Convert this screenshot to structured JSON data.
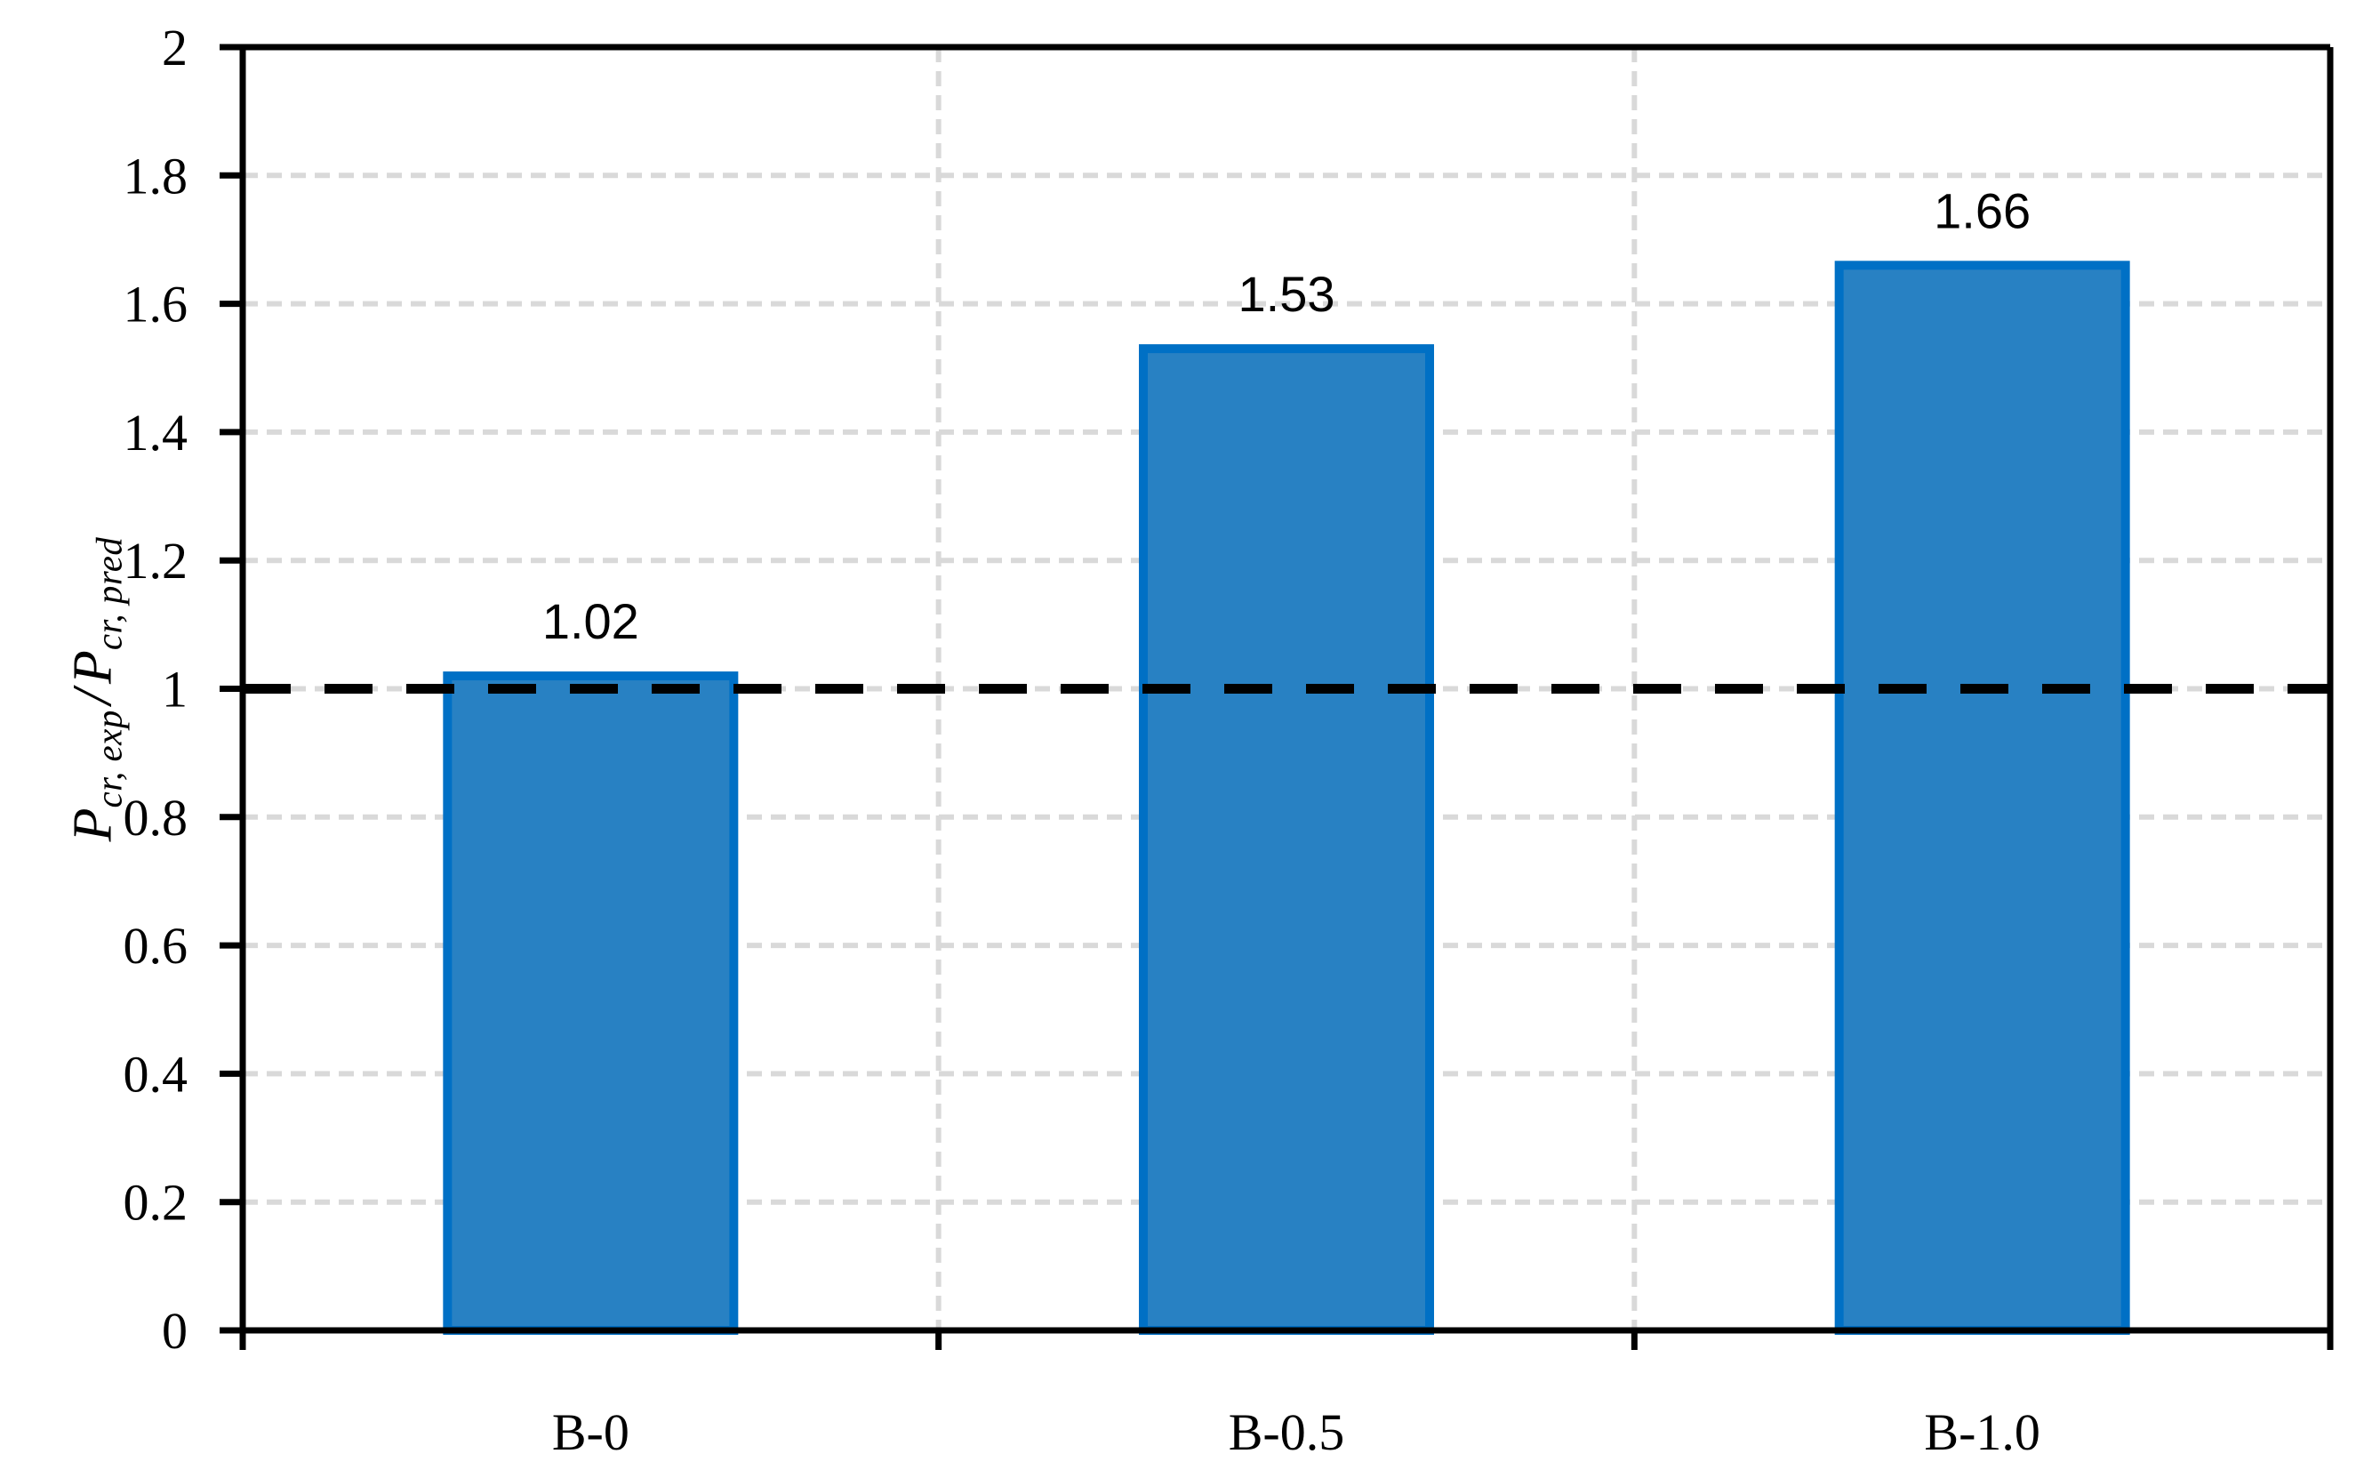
{
  "chart_data": {
    "type": "bar",
    "title": "",
    "categories": [
      "B-0",
      "B-0.5",
      "B-1.0"
    ],
    "values": [
      1.02,
      1.53,
      1.66
    ],
    "bar_labels": [
      "1.02",
      "1.53",
      "1.66"
    ],
    "series": [
      {
        "name": "Pcr,exp / Pcr,pred",
        "values": [
          1.02,
          1.53,
          1.66
        ]
      }
    ],
    "xlabel": "",
    "ylabel": {
      "term1_base": "P",
      "term1_sub": "cr, exp",
      "separator": "/",
      "term2_base": "P",
      "term2_sub": "cr, pred",
      "plain": "Pcr, exp / Pcr, pred"
    },
    "ylim": [
      0,
      2
    ],
    "ytick_step": 0.2,
    "yticks": [
      0,
      0.2,
      0.4,
      0.6,
      0.8,
      1,
      1.2,
      1.4,
      1.6,
      1.8,
      2
    ],
    "ytick_labels": [
      "0",
      "0.2",
      "0.4",
      "0.6",
      "0.8",
      "1",
      "1.2",
      "1.4",
      "1.6",
      "1.8",
      "2"
    ],
    "reference_line_y": 1,
    "grid": true,
    "grid_style": "dashed",
    "legend": "none",
    "colors": {
      "bar_fill": "#2881C3",
      "bar_border": "#0070C5",
      "gridline": "#D9D9D9",
      "reference_line": "#000000",
      "axis": "#000000",
      "text": "#000000",
      "background": "#FFFFFF"
    }
  }
}
